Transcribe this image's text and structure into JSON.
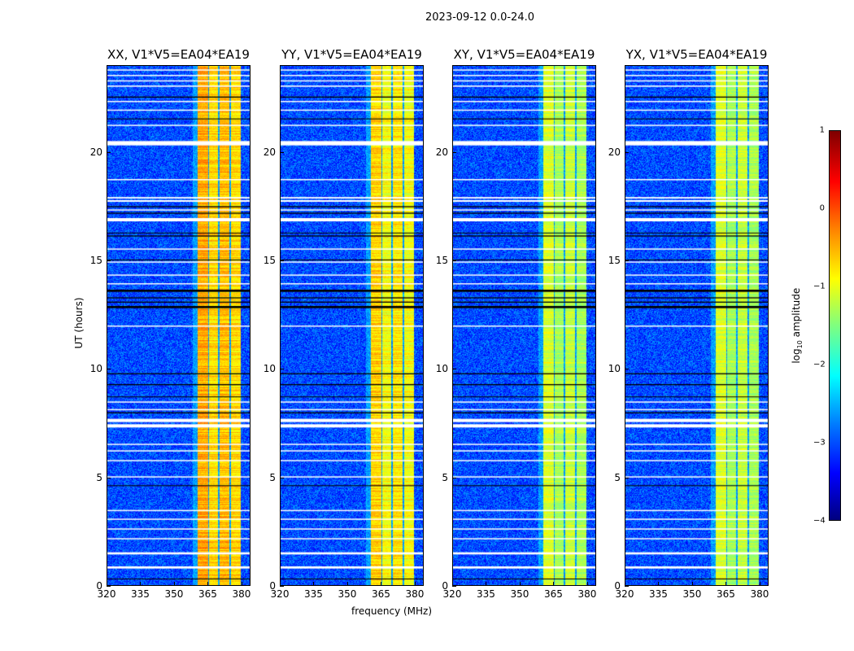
{
  "chart_data": {
    "type": "heatmap",
    "title": "2023-09-12 0.0-24.0",
    "xlabel": "frequency (MHz)",
    "ylabel": "UT (hours)",
    "xlim": [
      320,
      384
    ],
    "ylim": [
      0,
      24
    ],
    "xticks": [
      "320",
      "335",
      "350",
      "365",
      "380"
    ],
    "xtick_values": [
      320,
      335,
      350,
      365,
      380
    ],
    "yticks": [
      "0",
      "5",
      "10",
      "15",
      "20"
    ],
    "ytick_values": [
      0,
      5,
      10,
      15,
      20
    ],
    "colorbar": {
      "label_main": "log",
      "label_sub": "10",
      "label_rest": " amplitude",
      "range": [
        -4,
        1
      ],
      "ticks": [
        "1",
        "0",
        "−1",
        "−2",
        "−3",
        "−4"
      ],
      "tick_values": [
        1,
        0,
        -1,
        -2,
        -3,
        -4
      ],
      "colormap": "jet"
    },
    "background_level": -3.0,
    "band_subchannels_mhz": [
      [
        360.4,
        365.1
      ],
      [
        365.5,
        369.5
      ],
      [
        370.2,
        374.5
      ],
      [
        375.2,
        379.6
      ]
    ],
    "flagged_white_hours": [
      [
        0.8,
        0.9
      ],
      [
        1.45,
        1.55
      ],
      [
        2.15,
        2.2
      ],
      [
        2.6,
        2.65
      ],
      [
        3.05,
        3.1
      ],
      [
        3.45,
        3.5
      ],
      [
        5.0,
        5.05
      ],
      [
        5.75,
        5.8
      ],
      [
        6.2,
        6.25
      ],
      [
        6.5,
        6.55
      ],
      [
        7.3,
        7.45
      ],
      [
        7.55,
        7.7
      ],
      [
        8.1,
        8.15
      ],
      [
        8.45,
        8.5
      ],
      [
        11.95,
        12.0
      ],
      [
        13.9,
        13.95
      ],
      [
        14.3,
        14.35
      ],
      [
        14.9,
        14.95
      ],
      [
        15.5,
        15.55
      ],
      [
        16.8,
        16.95
      ],
      [
        17.3,
        17.35
      ],
      [
        17.7,
        17.78
      ],
      [
        17.85,
        17.92
      ],
      [
        18.7,
        18.75
      ],
      [
        20.3,
        20.5
      ],
      [
        21.2,
        21.25
      ],
      [
        21.9,
        21.95
      ],
      [
        22.3,
        22.35
      ],
      [
        23.0,
        23.06
      ],
      [
        23.25,
        23.3
      ],
      [
        23.5,
        23.55
      ],
      [
        23.75,
        23.8
      ]
    ],
    "flagged_black_hours": [
      [
        0.3,
        0.34
      ],
      [
        4.6,
        4.64
      ],
      [
        7.95,
        8.0
      ],
      [
        8.7,
        8.73
      ],
      [
        9.25,
        9.3
      ],
      [
        9.75,
        9.8
      ],
      [
        12.8,
        12.9
      ],
      [
        13.05,
        13.1
      ],
      [
        13.25,
        13.3
      ],
      [
        13.55,
        13.65
      ],
      [
        15.0,
        15.04
      ],
      [
        16.1,
        16.15
      ],
      [
        16.25,
        16.28
      ],
      [
        17.15,
        17.2
      ],
      [
        17.45,
        17.5
      ],
      [
        21.5,
        21.54
      ],
      [
        22.5,
        22.55
      ]
    ],
    "panels": [
      {
        "title": "XX, V1*V5=EA04*EA19",
        "band_level": -0.7,
        "band_variation": 0.5
      },
      {
        "title": "YY, V1*V5=EA04*EA19",
        "band_level": -0.9,
        "band_variation": 0.5
      },
      {
        "title": "XY, V1*V5=EA04*EA19",
        "band_level": -1.3,
        "band_variation": 0.4
      },
      {
        "title": "YX, V1*V5=EA04*EA19",
        "band_level": -1.3,
        "band_variation": 0.4
      }
    ]
  }
}
